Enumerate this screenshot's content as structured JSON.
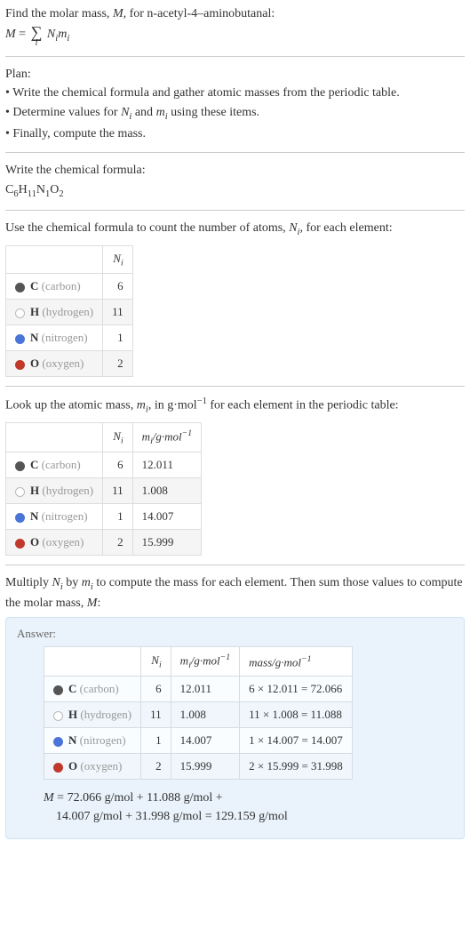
{
  "intro": {
    "line1_pre": "Find the molar mass, ",
    "line1_var": "M",
    "line1_post": ", for n-acetyl-4–aminobutanal:",
    "eq_lhs": "M",
    "eq_eq": " = ",
    "eq_rhs_N": "N",
    "eq_rhs_m": "m",
    "eq_sub": "i"
  },
  "plan": {
    "title": "Plan:",
    "b1": "• Write the chemical formula and gather atomic masses from the periodic table.",
    "b2_pre": "• Determine values for ",
    "b2_N": "N",
    "b2_mid": " and ",
    "b2_m": "m",
    "b2_sub": "i",
    "b2_post": " using these items.",
    "b3": "• Finally, compute the mass."
  },
  "chem": {
    "title": "Write the chemical formula:",
    "C": "C",
    "C_n": "6",
    "H": "H",
    "H_n": "11",
    "N": "N",
    "N_n": "1",
    "O": "O",
    "O_n": "2"
  },
  "count": {
    "title_pre": "Use the chemical formula to count the number of atoms, ",
    "title_var": "N",
    "title_sub": "i",
    "title_post": ", for each element:",
    "header_N": "N",
    "header_sub": "i"
  },
  "elements": [
    {
      "sym": "C",
      "name": "(carbon)",
      "dot_fill": "#555",
      "dot_border": "#555",
      "N": "6",
      "m": "12.011",
      "mass_expr": "6 × 12.011 = 72.066"
    },
    {
      "sym": "H",
      "name": "(hydrogen)",
      "dot_fill": "#fff",
      "dot_border": "#bbb",
      "N": "11",
      "m": "1.008",
      "mass_expr": "11 × 1.008 = 11.088"
    },
    {
      "sym": "N",
      "name": "(nitrogen)",
      "dot_fill": "#4a74d8",
      "dot_border": "#4a74d8",
      "N": "1",
      "m": "14.007",
      "mass_expr": "1 × 14.007 = 14.007"
    },
    {
      "sym": "O",
      "name": "(oxygen)",
      "dot_fill": "#c0392b",
      "dot_border": "#c0392b",
      "N": "2",
      "m": "15.999",
      "mass_expr": "2 × 15.999 = 31.998"
    }
  ],
  "mass": {
    "title_pre": "Look up the atomic mass, ",
    "title_var": "m",
    "title_sub": "i",
    "title_mid": ", in g·mol",
    "title_exp": "−1",
    "title_post": " for each element in the periodic table:",
    "hdr_N": "N",
    "hdr_N_sub": "i",
    "hdr_m": "m",
    "hdr_m_sub": "i",
    "hdr_unit_pre": "/g·mol",
    "hdr_unit_exp": "−1"
  },
  "multiply": {
    "line_pre": "Multiply ",
    "N": "N",
    "sub": "i",
    "mid": " by ",
    "m": "m",
    "post": " to compute the mass for each element. Then sum those values to compute the molar mass, ",
    "Mvar": "M",
    "colon": ":"
  },
  "answer": {
    "label": "Answer:",
    "hdr_N": "N",
    "hdr_N_sub": "i",
    "hdr_m": "m",
    "hdr_m_sub": "i",
    "hdr_m_unit_pre": "/g·mol",
    "hdr_m_unit_exp": "−1",
    "hdr_mass_pre": "mass/g·mol",
    "hdr_mass_exp": "−1",
    "final_l1_pre": "M",
    "final_l1_rest": " = 72.066 g/mol + 11.088 g/mol +",
    "final_l2": "14.007 g/mol + 31.998 g/mol = 129.159 g/mol"
  }
}
